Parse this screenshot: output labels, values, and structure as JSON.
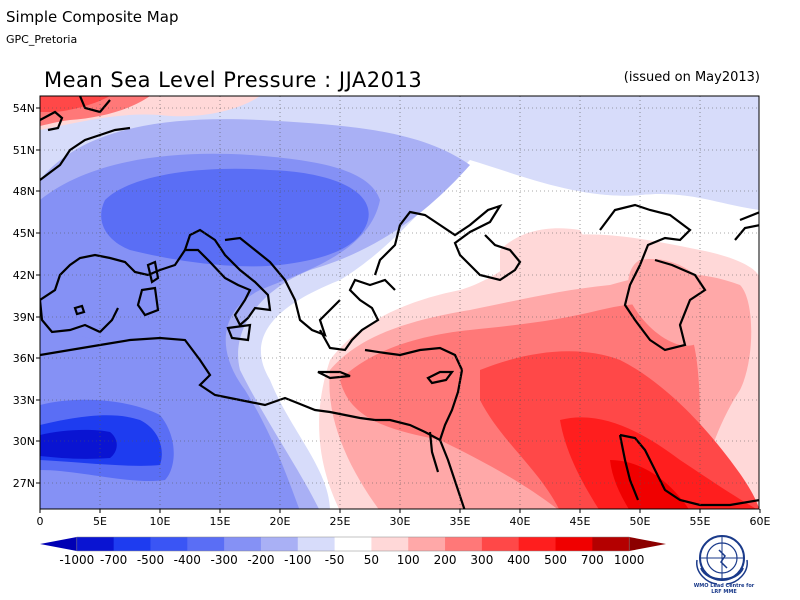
{
  "header": {
    "title": "Simple Composite Map",
    "subtitle": "GPC_Pretoria"
  },
  "map": {
    "title": "Mean Sea Level Pressure : JJA2013",
    "issued": "(issued on May2013)",
    "lat_labels": [
      "54N",
      "51N",
      "48N",
      "45N",
      "42N",
      "39N",
      "36N",
      "33N",
      "30N",
      "27N"
    ],
    "lon_labels": [
      "0",
      "5E",
      "10E",
      "15E",
      "20E",
      "25E",
      "30E",
      "35E",
      "40E",
      "45E",
      "50E",
      "55E",
      "60E"
    ]
  },
  "legend": {
    "labels": [
      "-1000",
      "-700",
      "-500",
      "-400",
      "-300",
      "-200",
      "-100",
      "-50",
      "50",
      "100",
      "200",
      "300",
      "400",
      "500",
      "700",
      "1000"
    ],
    "colors": [
      "#0000b4",
      "#0a14d2",
      "#1e3cf0",
      "#3a55f5",
      "#5a6ef5",
      "#8591f5",
      "#a9b0f5",
      "#d7dcfa",
      "#ffffff",
      "#ffd8d8",
      "#ffa8a8",
      "#ff7878",
      "#ff4848",
      "#ff1e1e",
      "#f00000",
      "#b40000",
      "#8c0000"
    ]
  },
  "logo": {
    "text_line1": "WMO Lead Centre for",
    "text_line2": "LRF MME"
  }
}
